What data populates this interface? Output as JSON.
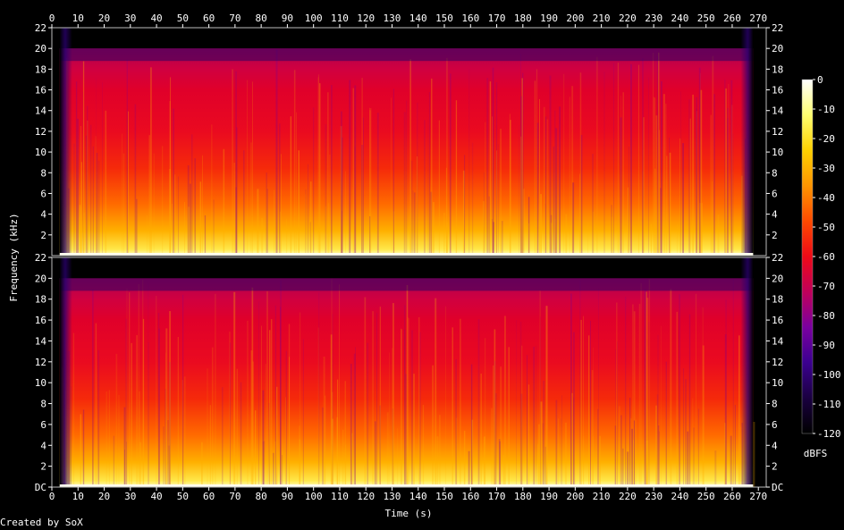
{
  "chart_data": {
    "type": "heatmap",
    "title": "",
    "xlabel": "Time (s)",
    "ylabel": "Frequency (kHz)",
    "colorbar_label": "dBFS",
    "xlim": [
      0,
      273
    ],
    "ylim": [
      0,
      22
    ],
    "x_ticks": [
      "0",
      "10",
      "20",
      "30",
      "40",
      "50",
      "60",
      "70",
      "80",
      "90",
      "100",
      "110",
      "120",
      "130",
      "140",
      "150",
      "160",
      "170",
      "180",
      "190",
      "200",
      "210",
      "220",
      "230",
      "240",
      "250",
      "260",
      "270"
    ],
    "y_ticks_top": [
      "2",
      "4",
      "6",
      "8",
      "10",
      "12",
      "14",
      "16",
      "18",
      "20",
      "22"
    ],
    "y_ticks_bottom": [
      "DC",
      "2",
      "4",
      "6",
      "8",
      "10",
      "12",
      "14",
      "16",
      "18",
      "20",
      "22"
    ],
    "colorbar_ticks": [
      "0",
      "-10",
      "-20",
      "-30",
      "-40",
      "-50",
      "-60",
      "-70",
      "-80",
      "-90",
      "-100",
      "-110",
      "-120"
    ],
    "colorbar_range": [
      -120,
      0
    ],
    "channels": 2,
    "cutoff_khz": 20,
    "signal_start_s": 3,
    "signal_end_s": 268,
    "colors": [
      "#000000",
      "#1a0040",
      "#3b0090",
      "#7a00a0",
      "#c0005a",
      "#ef0a17",
      "#ff4a00",
      "#ff9500",
      "#ffd100",
      "#ffff70",
      "#ffffff"
    ]
  },
  "footer": {
    "credit": "Created by SoX"
  }
}
